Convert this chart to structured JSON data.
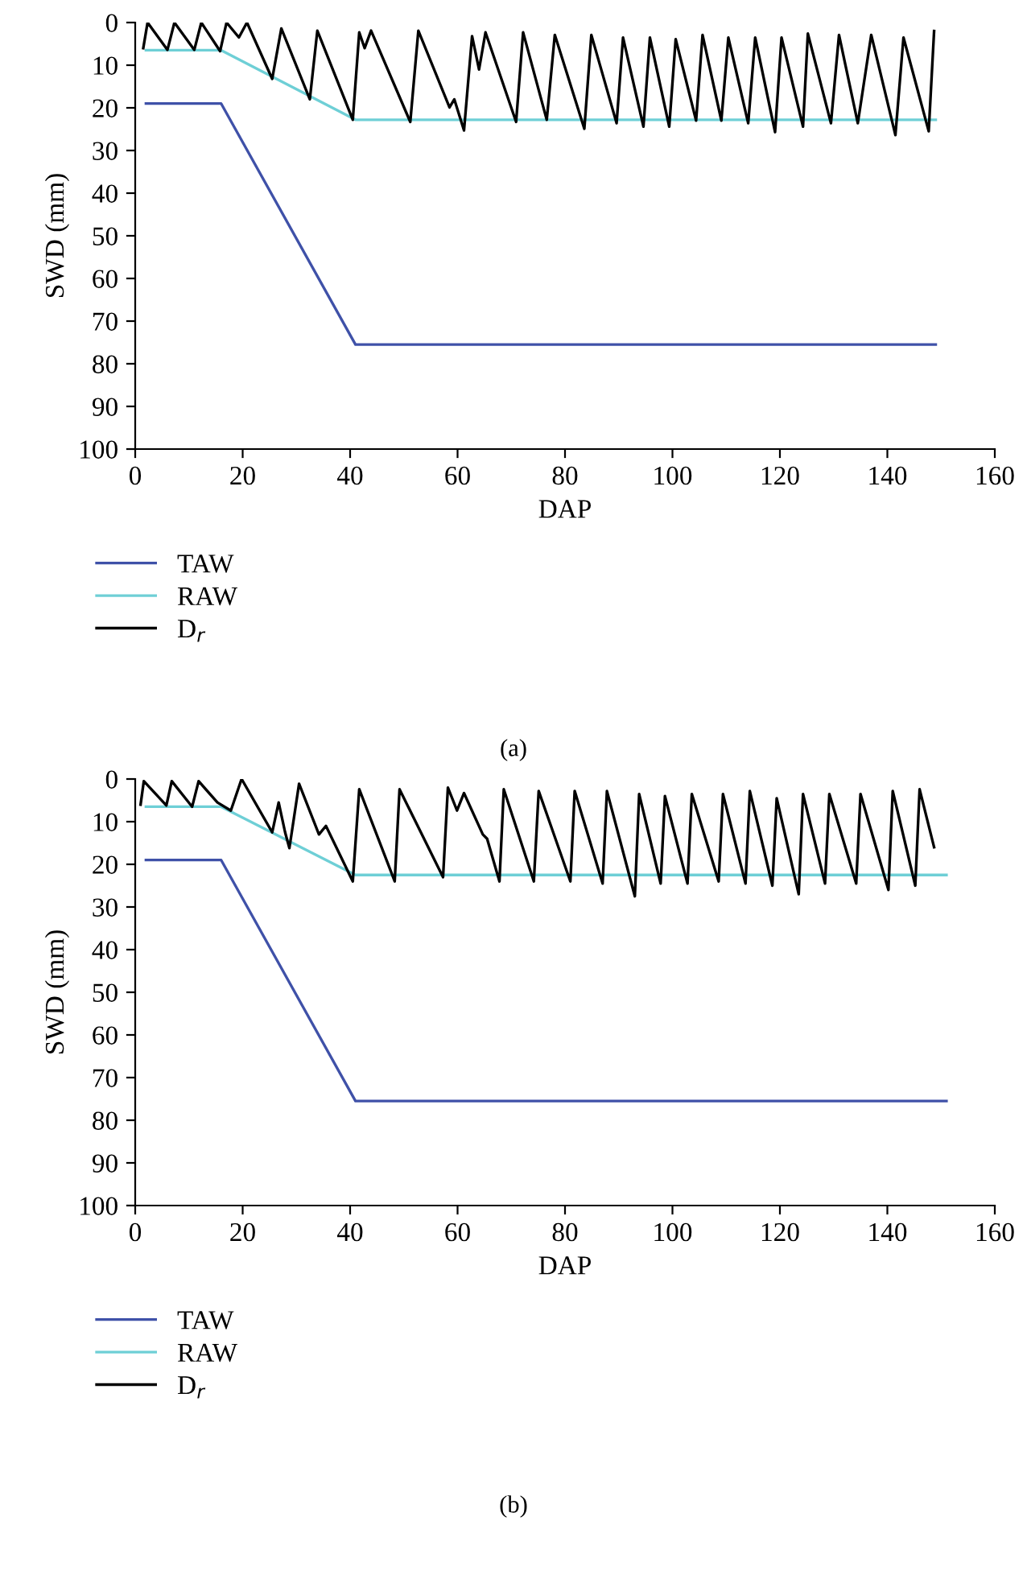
{
  "chart_data": [
    {
      "type": "line",
      "xlabel": "DAP",
      "ylabel": "SWD (mm)",
      "xlim": [
        0,
        160
      ],
      "ylim": [
        100,
        0
      ],
      "xticks": [
        0,
        20,
        40,
        60,
        80,
        100,
        120,
        140,
        160
      ],
      "yticks": [
        0,
        10,
        20,
        30,
        40,
        50,
        60,
        70,
        80,
        90,
        100
      ],
      "grid": false,
      "legend": "bottom left",
      "marker": "none",
      "line_style": "solid",
      "annotations": [
        "(a)"
      ],
      "series": [
        {
          "name": "TAW",
          "color": "#3f51a8",
          "x": [
            2,
            16,
            41,
            149
          ],
          "values": [
            19,
            19,
            75.5,
            75.5
          ]
        },
        {
          "name": "RAW",
          "color": "#6ecfd6",
          "x": [
            2,
            16,
            41,
            149
          ],
          "values": [
            6.5,
            6.5,
            22.8,
            22.8
          ]
        },
        {
          "name": "D$_{r}$",
          "color": "#000000",
          "x": [
            1.5,
            2.3,
            6,
            7.3,
            11,
            12.3,
            15.8,
            17,
            19.3,
            20.8,
            25.5,
            27.2,
            32.5,
            33.9,
            40.5,
            41.7,
            42.7,
            43.9,
            51.2,
            52.7,
            58.5,
            59.4,
            61.2,
            62.7,
            64,
            65.2,
            70.9,
            72.2,
            76.6,
            78.1,
            83.6,
            84.9,
            89.6,
            90.8,
            94.6,
            95.8,
            99.4,
            100.6,
            104.4,
            105.6,
            109.1,
            110.4,
            114.1,
            115.4,
            119.1,
            120.3,
            124.3,
            125.2,
            129.5,
            131,
            134.5,
            137,
            141.5,
            143,
            147.7,
            148.7
          ],
          "values": [
            6,
            0,
            6.4,
            0,
            6.4,
            0,
            6.7,
            0,
            3.5,
            0,
            13.2,
            1.4,
            18,
            1.9,
            22.8,
            2.3,
            6,
            1.9,
            23.3,
            1.9,
            19.9,
            18,
            25.3,
            3.2,
            11,
            2.3,
            23.3,
            2.3,
            22.8,
            2.9,
            24.9,
            2.9,
            23.6,
            3.5,
            24.4,
            3.5,
            24.4,
            3.9,
            23,
            2.9,
            23,
            3.5,
            23.6,
            3.5,
            25.7,
            3.5,
            24.4,
            2.6,
            23.6,
            2.9,
            23.6,
            2.9,
            26.4,
            3.5,
            25.5,
            2
          ]
        }
      ]
    },
    {
      "type": "line",
      "xlabel": "DAP",
      "ylabel": "SWD (mm)",
      "xlim": [
        0,
        160
      ],
      "ylim": [
        100,
        0
      ],
      "xticks": [
        0,
        20,
        40,
        60,
        80,
        100,
        120,
        140,
        160
      ],
      "yticks": [
        0,
        10,
        20,
        30,
        40,
        50,
        60,
        70,
        80,
        90,
        100
      ],
      "grid": false,
      "legend": "bottom left",
      "marker": "none",
      "line_style": "solid",
      "annotations": [
        "(b)"
      ],
      "series": [
        {
          "name": "TAW",
          "color": "#3f51a8",
          "x": [
            2,
            16,
            41,
            151
          ],
          "values": [
            19,
            19,
            75.5,
            75.5
          ]
        },
        {
          "name": "RAW",
          "color": "#6ecfd6",
          "x": [
            2,
            16,
            41,
            151
          ],
          "values": [
            6.5,
            6.5,
            22.5,
            22.5
          ]
        },
        {
          "name": "D$_{r}$",
          "color": "#000000",
          "x": [
            1,
            1.6,
            5.8,
            6.8,
            10.6,
            11.8,
            15.3,
            17.8,
            19.8,
            25.5,
            26.7,
            27.9,
            28.7,
            30.5,
            34.2,
            35.5,
            40.5,
            41.7,
            48.3,
            49.2,
            57.3,
            58.2,
            59.9,
            61.2,
            64.7,
            65.5,
            67.8,
            68.6,
            74.2,
            75.1,
            81,
            81.8,
            87,
            87.8,
            93,
            93.8,
            97.8,
            98.6,
            102.8,
            103.6,
            108.6,
            109.4,
            113.6,
            114.4,
            118.6,
            119.4,
            123.5,
            124.3,
            128.4,
            129.2,
            134.2,
            135,
            140.2,
            141,
            145.2,
            146,
            148.7
          ],
          "values": [
            6,
            0.5,
            6.2,
            0.5,
            6.5,
            0.5,
            5.5,
            7.4,
            0,
            12.5,
            5.5,
            12.5,
            16.2,
            1.1,
            13,
            11,
            24,
            2.4,
            24,
            2.4,
            23,
            2,
            7.4,
            3.3,
            13,
            14,
            24,
            2.4,
            24,
            2.8,
            24,
            2.8,
            24.5,
            2.8,
            27.5,
            3.5,
            24.5,
            4,
            24.5,
            3.5,
            24,
            3.5,
            24.5,
            2.8,
            25,
            4.5,
            27,
            3.5,
            24.5,
            3.5,
            24.5,
            3.5,
            26,
            2.8,
            25,
            2.4,
            16
          ]
        }
      ]
    }
  ]
}
